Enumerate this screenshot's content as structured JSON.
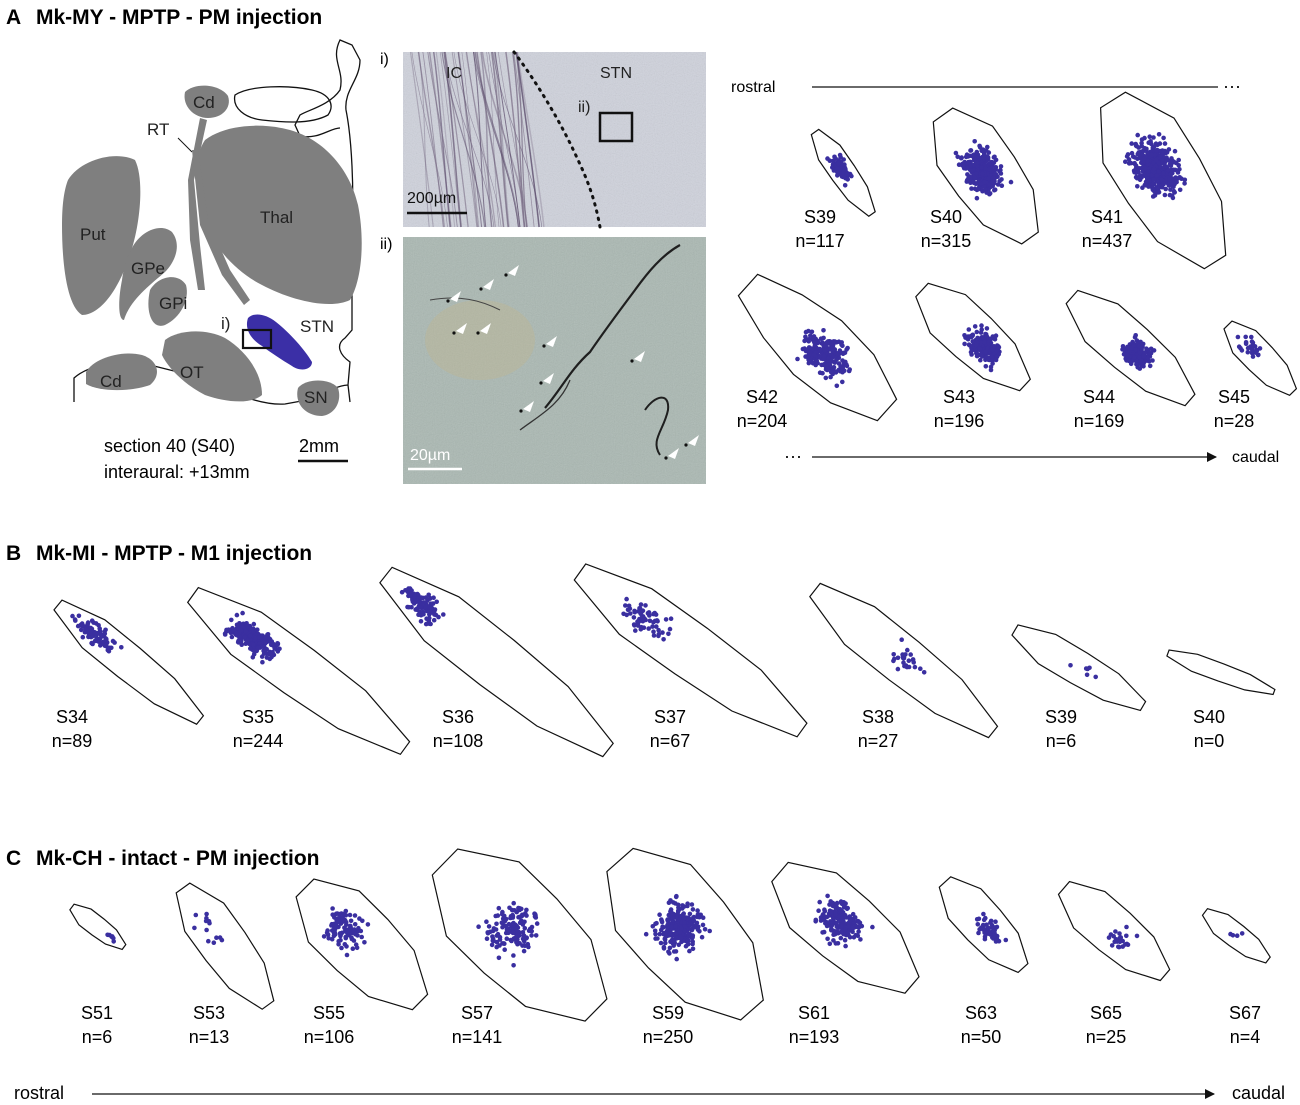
{
  "panel_a": {
    "letter": "A",
    "title": "Mk-MY - MPTP - PM injection",
    "atlas": {
      "regions": [
        "Cd",
        "RT",
        "Thal",
        "Put",
        "GPe",
        "GPi",
        "STN",
        "Cd",
        "OT",
        "SN"
      ],
      "box_label": "i)",
      "section_label": "section 40 (S40)",
      "interaural_label": "interaural: +13mm",
      "scale_label": "2mm",
      "stn_color": "#3b2fa6"
    },
    "micro_i": {
      "label": "i)",
      "left_region": "IC",
      "right_region": "STN",
      "box_label": "ii)",
      "scale_label": "200µm",
      "background": "#cfd2dc"
    },
    "micro_ii": {
      "label": "ii)",
      "scale_label": "20µm",
      "background": "#aab8b2"
    },
    "series_start": "rostral",
    "series_end": "caudal",
    "sections": [
      {
        "name": "S39",
        "count": "n=117",
        "n": 117
      },
      {
        "name": "S40",
        "count": "n=315",
        "n": 315
      },
      {
        "name": "S41",
        "count": "n=437",
        "n": 437
      },
      {
        "name": "S42",
        "count": "n=204",
        "n": 204
      },
      {
        "name": "S43",
        "count": "n=196",
        "n": 196
      },
      {
        "name": "S44",
        "count": "n=169",
        "n": 169
      },
      {
        "name": "S45",
        "count": "n=28",
        "n": 28
      }
    ]
  },
  "panel_b": {
    "letter": "B",
    "title": "Mk-MI - MPTP - M1 injection",
    "sections": [
      {
        "name": "S34",
        "count": "n=89",
        "n": 89
      },
      {
        "name": "S35",
        "count": "n=244",
        "n": 244
      },
      {
        "name": "S36",
        "count": "n=108",
        "n": 108
      },
      {
        "name": "S37",
        "count": "n=67",
        "n": 67
      },
      {
        "name": "S38",
        "count": "n=27",
        "n": 27
      },
      {
        "name": "S39",
        "count": "n=6",
        "n": 6
      },
      {
        "name": "S40",
        "count": "n=0",
        "n": 0
      }
    ]
  },
  "panel_c": {
    "letter": "C",
    "title": "Mk-CH - intact - PM injection",
    "sections": [
      {
        "name": "S51",
        "count": "n=6",
        "n": 6
      },
      {
        "name": "S53",
        "count": "n=13",
        "n": 13
      },
      {
        "name": "S55",
        "count": "n=106",
        "n": 106
      },
      {
        "name": "S57",
        "count": "n=141",
        "n": 141
      },
      {
        "name": "S59",
        "count": "n=250",
        "n": 250
      },
      {
        "name": "S61",
        "count": "n=193",
        "n": 193
      },
      {
        "name": "S63",
        "count": "n=50",
        "n": 50
      },
      {
        "name": "S65",
        "count": "n=25",
        "n": 25
      },
      {
        "name": "S67",
        "count": "n=4",
        "n": 4
      }
    ],
    "axis_start": "rostral",
    "axis_end": "caudal"
  },
  "colors": {
    "dots": "#3a2fa0",
    "regions": "#7f7f7f",
    "outline": "#111111"
  }
}
